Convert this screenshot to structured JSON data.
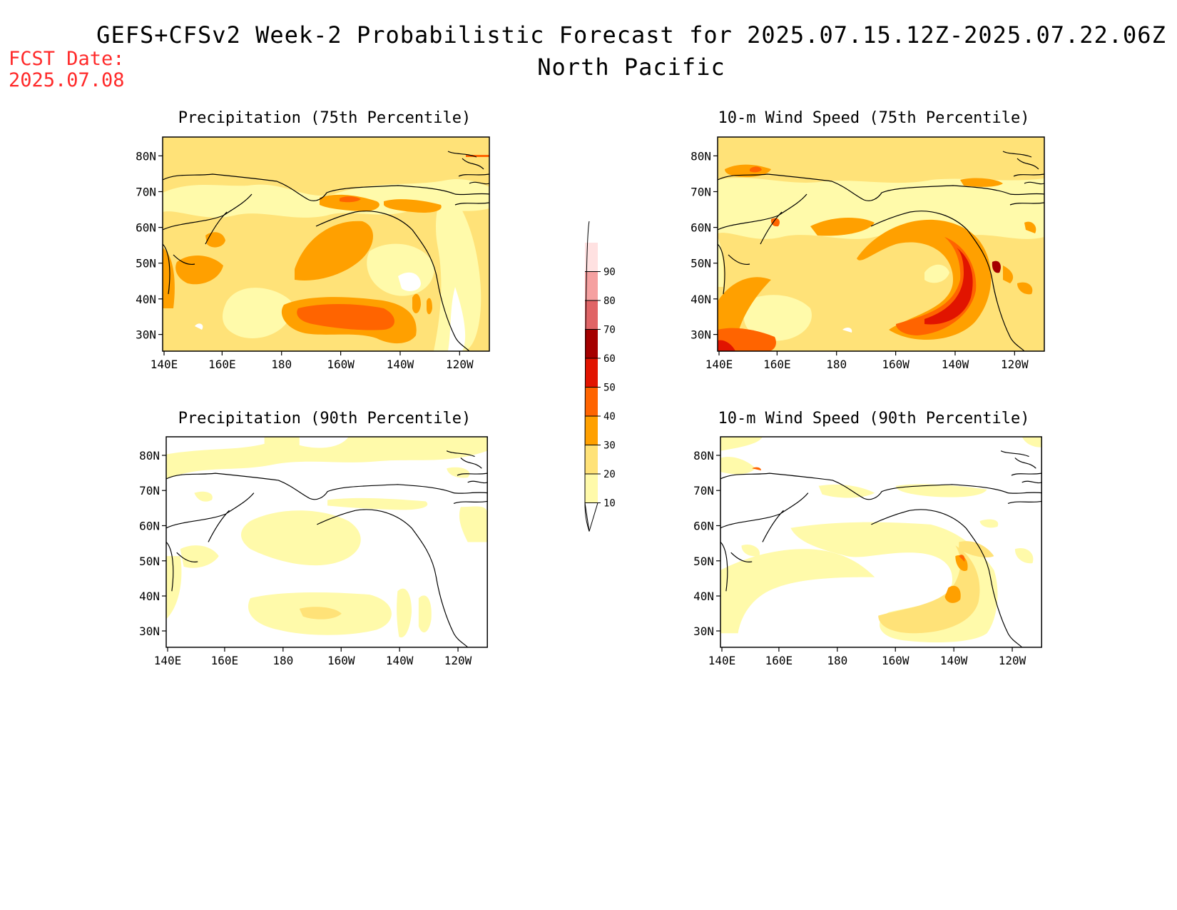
{
  "header": {
    "title": "GEFS+CFSv2 Week-2 Probabilistic Forecast for 2025.07.15.12Z-2025.07.22.06Z",
    "subtitle": "North Pacific",
    "fcst_label": "FCST Date:",
    "fcst_date": "2025.07.08"
  },
  "panels": [
    {
      "id": "precip75",
      "title": "Precipitation (75th Percentile)"
    },
    {
      "id": "wind75",
      "title": "10-m Wind Speed (75th Percentile)"
    },
    {
      "id": "precip90",
      "title": "Precipitation (90th Percentile)"
    },
    {
      "id": "wind90",
      "title": "10-m Wind Speed (90th Percentile)"
    }
  ],
  "axes": {
    "lat_labels": [
      "80N",
      "70N",
      "60N",
      "50N",
      "40N",
      "30N"
    ],
    "lon_labels": [
      "140E",
      "160E",
      "180",
      "160W",
      "140W",
      "120W"
    ]
  },
  "colorbar": {
    "levels": [
      "10",
      "20",
      "30",
      "40",
      "50",
      "60",
      "70",
      "80",
      "90"
    ],
    "colors": [
      "#fffaaa",
      "#ffe278",
      "#ffa000",
      "#ff6400",
      "#e11400",
      "#a50000",
      "#e06466",
      "#f5a0a0",
      "#ffe1e1"
    ]
  }
}
